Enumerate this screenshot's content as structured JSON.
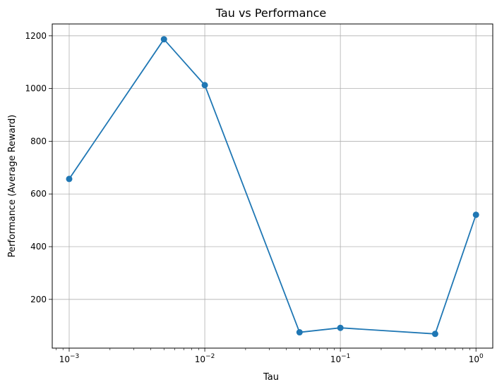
{
  "chart_data": {
    "type": "line",
    "title": "Tau vs Performance",
    "xlabel": "Tau",
    "ylabel": "Performance (Average Reward)",
    "x_scale": "log",
    "x": [
      0.001,
      0.005,
      0.01,
      0.05,
      0.1,
      0.5,
      1.0
    ],
    "series": [
      {
        "values": [
          657,
          1187,
          1013,
          75,
          92,
          69,
          521
        ],
        "color": "#1f77b4",
        "marker": "circle"
      }
    ],
    "xlim": [
      0.00075,
      1.33
    ],
    "ylim": [
      15,
      1245
    ],
    "x_ticks": [
      {
        "value": 0.001,
        "base": "10",
        "exp": "−3"
      },
      {
        "value": 0.01,
        "base": "10",
        "exp": "−2"
      },
      {
        "value": 0.1,
        "base": "10",
        "exp": "−1"
      },
      {
        "value": 1,
        "base": "10",
        "exp": "0"
      }
    ],
    "y_ticks": [
      200,
      400,
      600,
      800,
      1000,
      1200
    ],
    "grid": true,
    "legend": "none"
  }
}
